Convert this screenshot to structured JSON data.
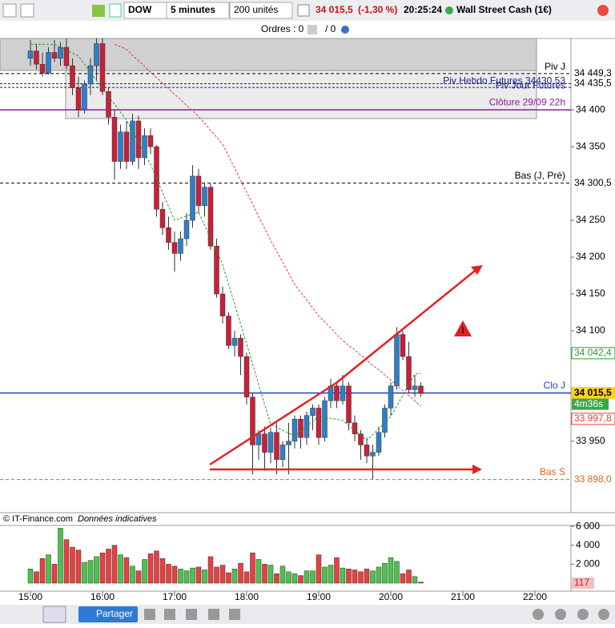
{
  "toolbar": {
    "symbol": "DOW",
    "period": "5 minutes",
    "units": "200 unités",
    "price": "34 015,5",
    "change": "(-1,30 %)",
    "time": "20:25:24",
    "instrument": "Wall Street Cash (1€)",
    "orders": "Ordres : 0",
    "orders_2": "/ 0"
  },
  "chart": {
    "type": "candlestick",
    "ylim": [
      33853,
      34497
    ],
    "yticks": [
      {
        "value": 34400,
        "label": "34 400"
      },
      {
        "value": 34350,
        "label": "34 350"
      },
      {
        "value": 34250,
        "label": "34 250"
      },
      {
        "value": 34200,
        "label": "34 200"
      },
      {
        "value": 34150,
        "label": "34 150"
      },
      {
        "value": 34100,
        "label": "34 100"
      },
      {
        "value": 33950,
        "label": "33 950"
      }
    ],
    "xticks": [
      "15:00",
      "16:00",
      "17:00",
      "18:00",
      "19:00",
      "20:00",
      "21:00",
      "22:00"
    ],
    "candles": [
      [
        34470,
        34495,
        34460,
        34480
      ],
      [
        34480,
        34490,
        34455,
        34462
      ],
      [
        34462,
        34478,
        34445,
        34450
      ],
      [
        34450,
        34485,
        34448,
        34478
      ],
      [
        34478,
        34495,
        34465,
        34470
      ],
      [
        34470,
        34492,
        34460,
        34485
      ],
      [
        34485,
        34497,
        34455,
        34460
      ],
      [
        34460,
        34470,
        34420,
        34430
      ],
      [
        34430,
        34445,
        34390,
        34400
      ],
      [
        34400,
        34440,
        34395,
        34435
      ],
      [
        34435,
        34470,
        34420,
        34460
      ],
      [
        34460,
        34497,
        34440,
        34490
      ],
      [
        34490,
        34497,
        34420,
        34425
      ],
      [
        34425,
        34430,
        34380,
        34390
      ],
      [
        34390,
        34400,
        34305,
        34330
      ],
      [
        34330,
        34380,
        34320,
        34370
      ],
      [
        34370,
        34385,
        34320,
        34330
      ],
      [
        34330,
        34395,
        34325,
        34385
      ],
      [
        34385,
        34392,
        34320,
        34335
      ],
      [
        34335,
        34375,
        34325,
        34365
      ],
      [
        34365,
        34375,
        34340,
        34350
      ],
      [
        34350,
        34352,
        34255,
        34265
      ],
      [
        34265,
        34275,
        34230,
        34240
      ],
      [
        34240,
        34255,
        34210,
        34220
      ],
      [
        34220,
        34235,
        34180,
        34205
      ],
      [
        34205,
        34235,
        34195,
        34225
      ],
      [
        34225,
        34260,
        34215,
        34250
      ],
      [
        34250,
        34325,
        34240,
        34310
      ],
      [
        34310,
        34320,
        34260,
        34270
      ],
      [
        34270,
        34300,
        34255,
        34295
      ],
      [
        34295,
        34300,
        34210,
        34215
      ],
      [
        34215,
        34225,
        34145,
        34150
      ],
      [
        34150,
        34160,
        34110,
        34120
      ],
      [
        34120,
        34125,
        34075,
        34080
      ],
      [
        34080,
        34100,
        34065,
        34090
      ],
      [
        34090,
        34095,
        34040,
        34065
      ],
      [
        34065,
        34070,
        34000,
        34010
      ],
      [
        34010,
        34015,
        33905,
        33945
      ],
      [
        33945,
        33965,
        33925,
        33960
      ],
      [
        33960,
        33970,
        33910,
        33935
      ],
      [
        33935,
        33968,
        33920,
        33962
      ],
      [
        33962,
        33975,
        33905,
        33925
      ],
      [
        33925,
        33950,
        33915,
        33945
      ],
      [
        33945,
        33975,
        33905,
        33950
      ],
      [
        33950,
        33985,
        33940,
        33980
      ],
      [
        33980,
        33985,
        33940,
        33955
      ],
      [
        33955,
        33990,
        33945,
        33985
      ],
      [
        33985,
        34000,
        33965,
        33995
      ],
      [
        33995,
        34000,
        33945,
        33955
      ],
      [
        33955,
        34010,
        33950,
        34005
      ],
      [
        34005,
        34035,
        33995,
        34025
      ],
      [
        34025,
        34030,
        33995,
        34005
      ],
      [
        34005,
        34040,
        34000,
        34025
      ],
      [
        34025,
        34030,
        33965,
        33975
      ],
      [
        33975,
        33985,
        33950,
        33960
      ],
      [
        33960,
        33965,
        33925,
        33945
      ],
      [
        33945,
        33955,
        33920,
        33930
      ],
      [
        33930,
        33945,
        33898,
        33935
      ],
      [
        33935,
        33970,
        33930,
        33962
      ],
      [
        33962,
        34000,
        33955,
        33995
      ],
      [
        33995,
        34030,
        33985,
        34025
      ],
      [
        34025,
        34105,
        34020,
        34095
      ],
      [
        34095,
        34100,
        34060,
        34065
      ],
      [
        34065,
        34085,
        34015,
        34020
      ],
      [
        34020,
        34040,
        34010,
        34025
      ],
      [
        34025,
        34030,
        34010,
        34015
      ]
    ],
    "ma_fast": {
      "color": "#2a9a2a",
      "values": [
        34489,
        34489,
        34489,
        34489,
        34489,
        34485,
        34481,
        34477,
        34473,
        34462,
        34451,
        34440,
        34429,
        34418,
        34408,
        34397,
        34386,
        34371,
        34356,
        34341,
        34326,
        34307,
        34288,
        34269,
        34250,
        34253,
        34256,
        34258,
        34261,
        34243,
        34226,
        34208,
        34190,
        34163,
        34136,
        34109,
        34082,
        34055,
        34027,
        34000,
        33973,
        33969,
        33965,
        33961,
        33957,
        33964,
        33970,
        33977,
        33984,
        33983,
        33981,
        33980,
        33978,
        33971,
        33965,
        33958,
        33951,
        33959,
        33967,
        33975,
        33984,
        33998,
        34012,
        34027,
        34041,
        34042.4
      ],
      "last_label": "34 042,4"
    },
    "ma_slow": {
      "color": "#e04040",
      "values": [
        null,
        null,
        null,
        null,
        null,
        null,
        null,
        null,
        null,
        null,
        null,
        null,
        null,
        null,
        34489,
        34486,
        34482,
        34474,
        34467,
        34459,
        34451,
        34444,
        34436,
        34429,
        34421,
        34414,
        34406,
        34399,
        34391,
        34382,
        34372,
        34363,
        34353,
        34337,
        34321,
        34304,
        34288,
        34272,
        34255,
        34239,
        34223,
        34208,
        34193,
        34178,
        34163,
        34152,
        34142,
        34131,
        34120,
        34112,
        34104,
        34095,
        34087,
        34080,
        34074,
        34067,
        34060,
        34053,
        34047,
        34040,
        34033,
        34026,
        34019,
        34012,
        34005,
        33997.8
      ],
      "last_label": "33 997,8"
    },
    "levels": [
      {
        "name": "Piv J",
        "value": 34449.3,
        "label": "34 449,3",
        "color": "#000000"
      },
      {
        "name": "Piv Jour Futures",
        "value": 34435.5,
        "label": "34 435,5",
        "color": "#1a1a8c"
      },
      {
        "name": "Piv Hebdo Futures 34430,53",
        "value": 34430.53,
        "color": "#1a1a8c"
      },
      {
        "name": "Clôture 29/09 22h",
        "value": 34400,
        "color": "#8b1a9c"
      },
      {
        "name": "Bas (J, Pré)",
        "value": 34300.5,
        "label": "34 300,5",
        "color": "#000000"
      },
      {
        "name": "Clo J",
        "value": 34015.5,
        "label": "34 015,5",
        "color": "#1f3fd0"
      },
      {
        "name": "Bas S",
        "value": 33898.0,
        "label": "33 898,0",
        "color": "#d2691e"
      }
    ],
    "countdown": "4m36s",
    "volumes": [
      1500,
      1200,
      2600,
      3000,
      2000,
      5800,
      4600,
      3800,
      3500,
      2200,
      2400,
      2800,
      3200,
      3600,
      4000,
      3000,
      2700,
      1800,
      1300,
      2500,
      3100,
      3400,
      2600,
      2000,
      1800,
      1500,
      1300,
      1600,
      1700,
      1400,
      2800,
      1700,
      1900,
      1100,
      1500,
      2100,
      1200,
      3200,
      2500,
      2000,
      1900,
      1000,
      1800,
      1200,
      1000,
      800,
      1300,
      1300,
      3000,
      1700,
      1900,
      2700,
      1600,
      1500,
      1400,
      1200,
      1500,
      1300,
      1700,
      2100,
      2700,
      2300,
      1000,
      1400,
      700,
      117
    ],
    "vlim": [
      0,
      6600
    ],
    "vticks": [
      {
        "value": 6000,
        "label": "6 000"
      },
      {
        "value": 4000,
        "label": "4 000"
      },
      {
        "value": 2000,
        "label": "2 000"
      }
    ]
  },
  "footer": {
    "copyright": "© IT-Finance.com",
    "note": "Données indicatives"
  },
  "bottom_toolbar": {
    "share": "Partager"
  }
}
